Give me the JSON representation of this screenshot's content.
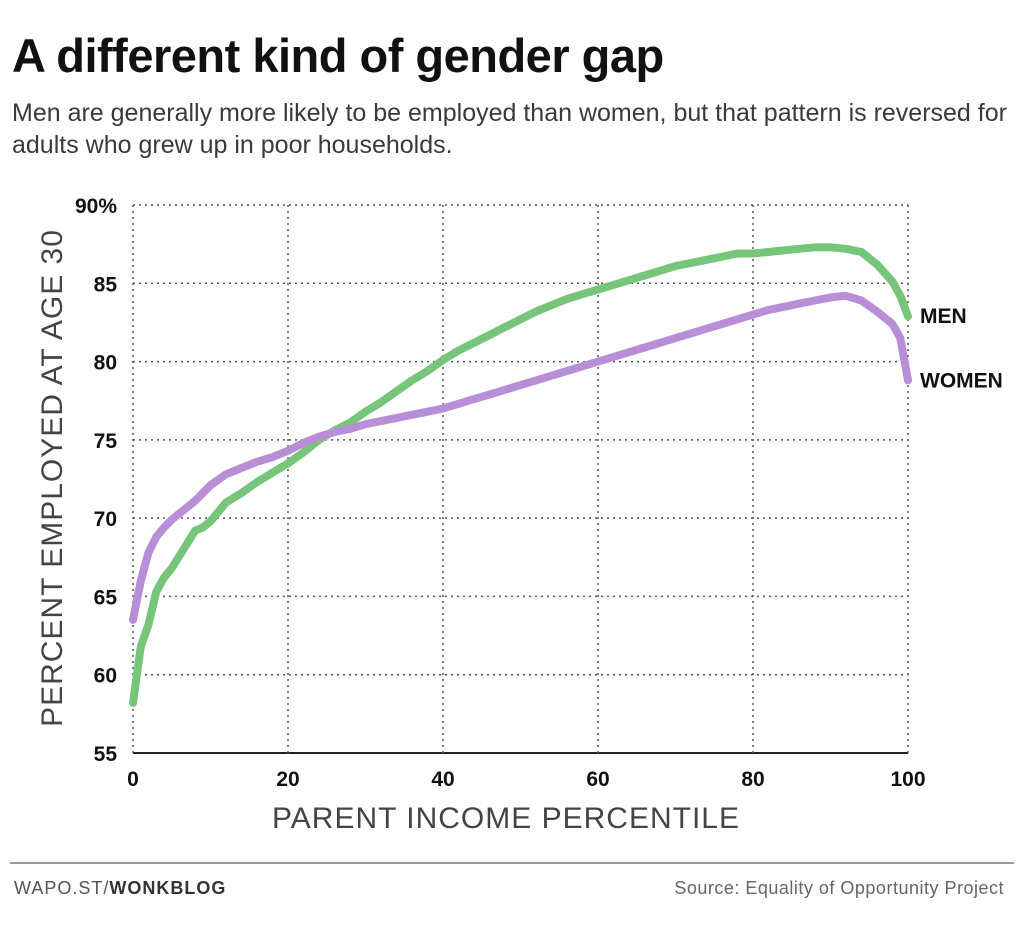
{
  "title": "A different kind of gender gap",
  "subtitle": "Men are generally more likely to be employed than women, but that pattern is reversed for adults who grew up in poor households.",
  "footer": {
    "site": "WAPO.ST/",
    "section": "WONKBLOG",
    "source": "Source: Equality of Opportunity Project"
  },
  "colors": {
    "men": "#77c57a",
    "women": "#b88fd6",
    "grid": "#555555"
  },
  "chart_data": {
    "type": "line",
    "xlabel": "PARENT INCOME PERCENTILE",
    "ylabel": "PERCENT EMPLOYED AT AGE 30",
    "xlim": [
      0,
      100
    ],
    "ylim": [
      55,
      90
    ],
    "xticks": [
      "0",
      "20",
      "40",
      "60",
      "80",
      "100"
    ],
    "yticks": [
      "55",
      "60",
      "65",
      "70",
      "75",
      "80",
      "85",
      "90%"
    ],
    "grid": true,
    "series": [
      {
        "name": "MEN",
        "x": [
          0,
          1,
          2,
          3,
          4,
          5,
          6,
          7,
          8,
          9,
          10,
          12,
          14,
          16,
          18,
          20,
          22,
          24,
          26,
          28,
          30,
          32,
          34,
          36,
          38,
          40,
          42,
          44,
          46,
          48,
          50,
          52,
          54,
          56,
          58,
          60,
          62,
          64,
          66,
          68,
          70,
          72,
          74,
          76,
          78,
          80,
          82,
          84,
          86,
          88,
          90,
          92,
          94,
          96,
          98,
          99,
          100
        ],
        "y": [
          58.2,
          61.8,
          63.2,
          65.3,
          66.2,
          66.8,
          67.6,
          68.4,
          69.2,
          69.4,
          69.8,
          71.0,
          71.6,
          72.3,
          72.9,
          73.5,
          74.2,
          75.0,
          75.6,
          76.1,
          76.8,
          77.4,
          78.1,
          78.8,
          79.4,
          80.1,
          80.7,
          81.2,
          81.7,
          82.2,
          82.7,
          83.2,
          83.6,
          84.0,
          84.3,
          84.6,
          84.9,
          85.2,
          85.5,
          85.8,
          86.1,
          86.3,
          86.5,
          86.7,
          86.9,
          86.9,
          87.0,
          87.1,
          87.2,
          87.3,
          87.3,
          87.2,
          87.0,
          86.2,
          85.1,
          84.2,
          82.9
        ]
      },
      {
        "name": "WOMEN",
        "x": [
          0,
          1,
          2,
          3,
          4,
          5,
          6,
          7,
          8,
          9,
          10,
          12,
          14,
          16,
          18,
          20,
          22,
          24,
          26,
          28,
          30,
          32,
          34,
          36,
          38,
          40,
          42,
          44,
          46,
          48,
          50,
          52,
          54,
          56,
          58,
          60,
          62,
          64,
          66,
          68,
          70,
          72,
          74,
          76,
          78,
          80,
          82,
          84,
          86,
          88,
          90,
          92,
          94,
          96,
          98,
          99,
          100
        ],
        "y": [
          63.5,
          66.0,
          67.8,
          68.8,
          69.4,
          69.9,
          70.3,
          70.7,
          71.1,
          71.6,
          72.1,
          72.8,
          73.2,
          73.6,
          73.9,
          74.3,
          74.8,
          75.2,
          75.5,
          75.7,
          76.0,
          76.2,
          76.4,
          76.6,
          76.8,
          77.0,
          77.3,
          77.6,
          77.9,
          78.2,
          78.5,
          78.8,
          79.1,
          79.4,
          79.7,
          80.0,
          80.3,
          80.6,
          80.9,
          81.2,
          81.5,
          81.8,
          82.1,
          82.4,
          82.7,
          83.0,
          83.3,
          83.5,
          83.7,
          83.9,
          84.1,
          84.2,
          83.9,
          83.2,
          82.4,
          81.5,
          78.8
        ]
      }
    ]
  }
}
